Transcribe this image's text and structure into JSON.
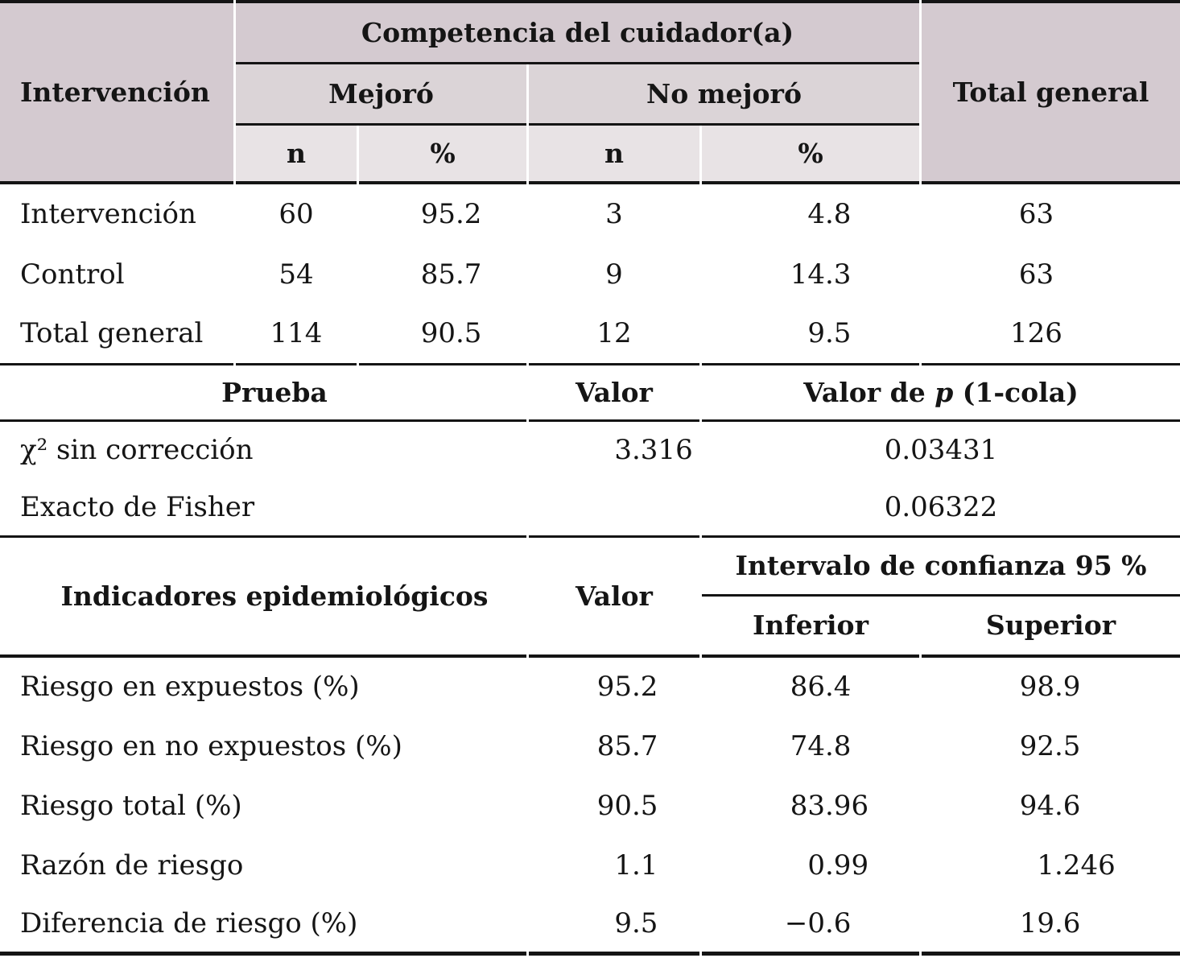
{
  "colors": {
    "header_dark": "#d4cad0",
    "header_medium": "#dbd4d7",
    "header_light": "#e8e3e5",
    "rule": "#141414",
    "background": "#ffffff"
  },
  "table1": {
    "corner_header": "Intervención",
    "span_header": "Competencia del cuidador(a)",
    "group_headers": [
      "Mejoró",
      "No mejoró"
    ],
    "sub_headers": [
      "n",
      "%",
      "n",
      "%"
    ],
    "total_header": "Total general",
    "rows": [
      {
        "label": "Intervención",
        "n1": "60",
        "p1": "95.2",
        "n2": "3",
        "p2": "4.8",
        "total": "63"
      },
      {
        "label": "Control",
        "n1": "54",
        "p1": "85.7",
        "n2": "9",
        "p2": "14.3",
        "total": "63"
      },
      {
        "label": "Total general",
        "n1": "114",
        "p1": "90.5",
        "n2": "12",
        "p2": "9.5",
        "total": "126"
      }
    ]
  },
  "table2": {
    "headers": {
      "test": "Prueba",
      "value": "Valor",
      "p_pre": "Valor de ",
      "p_italic": "p",
      "p_post": " (1-cola)"
    },
    "rows": [
      {
        "label": "χ² sin corrección",
        "value": "3.316",
        "p": "0.03431"
      },
      {
        "label": "Exacto de Fisher",
        "value": "",
        "p": "0.06322"
      }
    ]
  },
  "table3": {
    "headers": {
      "indicator": "Indicadores epidemiológicos",
      "value": "Valor",
      "ci": "Intervalo de confianza 95 %",
      "lower": "Inferior",
      "upper": "Superior"
    },
    "rows": [
      {
        "label": "Riesgo en expuestos (%)",
        "value": "95.2",
        "lower": "86.4",
        "upper": "98.9"
      },
      {
        "label": "Riesgo en no expuestos (%)",
        "value": "85.7",
        "lower": "74.8",
        "upper": "92.5"
      },
      {
        "label": "Riesgo total (%)",
        "value": "90.5",
        "lower": "83.96",
        "upper": "94.6"
      },
      {
        "label": "Razón de riesgo",
        "value": "1.1",
        "lower": "0.99",
        "upper": "1.246"
      },
      {
        "label": "Diferencia de riesgo (%)",
        "value": "9.5",
        "lower": "−0.6",
        "upper": "19.6"
      }
    ]
  }
}
